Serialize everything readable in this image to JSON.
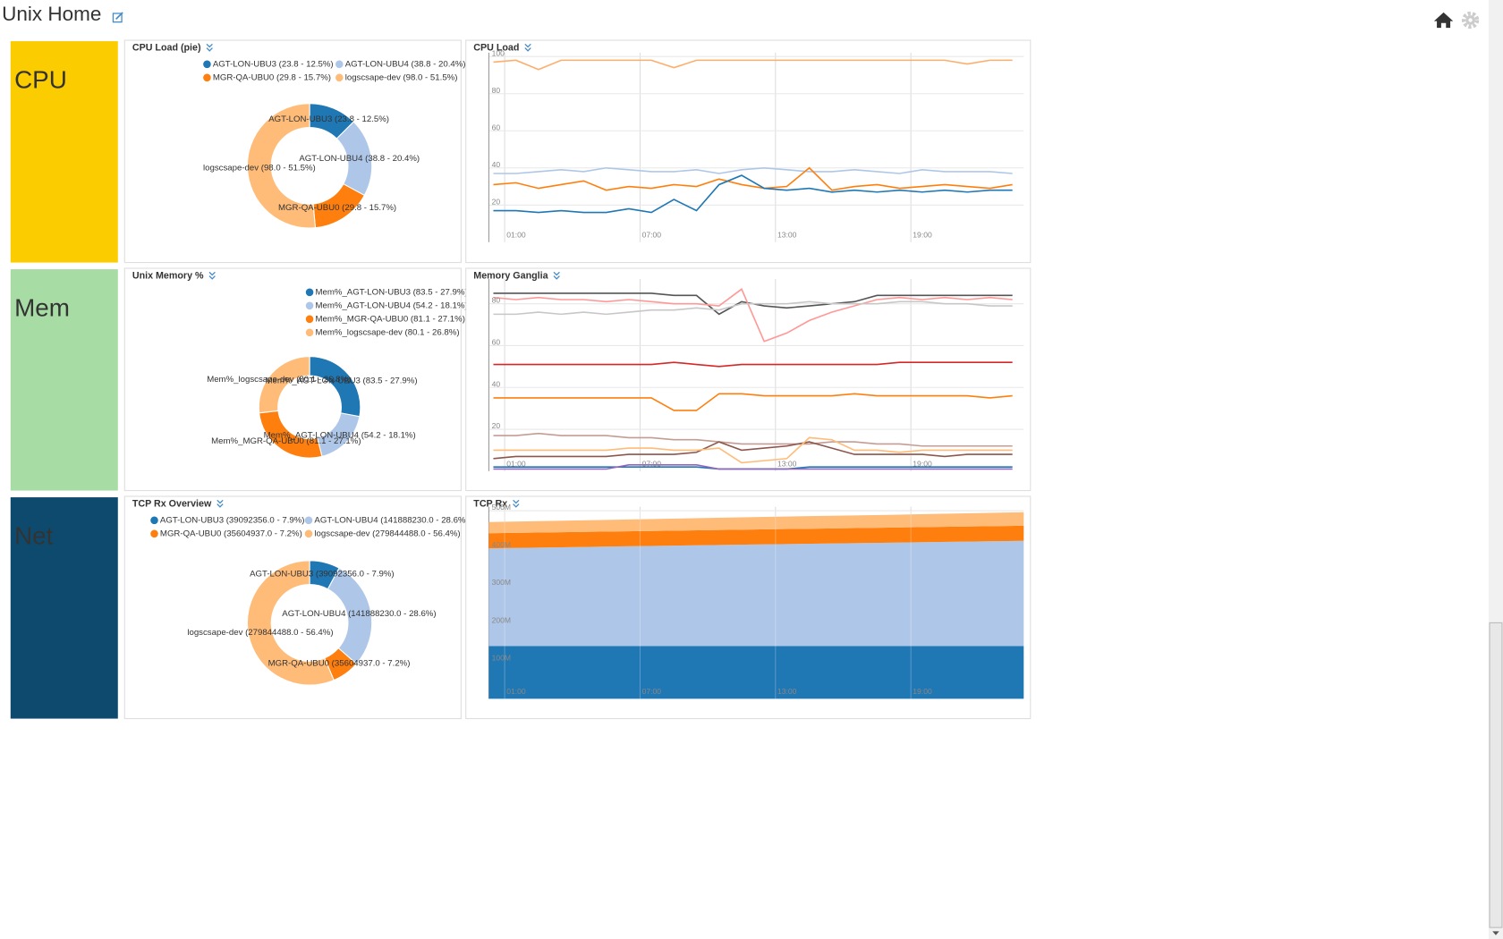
{
  "header": {
    "title": "Unix Home"
  },
  "tiles": [
    "CPU",
    "Mem",
    "Net"
  ],
  "chart_data": [
    {
      "type": "donut",
      "title": "CPU Load (pie)",
      "categories": [
        "AGT-LON-UBU3 (23.8 - 12.5%)",
        "AGT-LON-UBU4 (38.8 - 20.4%)",
        "MGR-QA-UBU0 (29.8 - 15.7%)",
        "logscsape-dev (98.0 - 51.5%)"
      ],
      "values": [
        23.8,
        38.8,
        29.8,
        98.0
      ],
      "colors": [
        "#1f77b4",
        "#aec7e8",
        "#ff7f0e",
        "#ffbb78"
      ]
    },
    {
      "type": "line",
      "title": "CPU Load",
      "grid": true,
      "x": [
        0.5,
        1.5,
        2.5,
        3.5,
        4.5,
        5.5,
        6.5,
        7.5,
        8.5,
        9.5,
        10.5,
        11.5,
        12.5,
        13.5,
        14.5,
        15.5,
        16.5,
        17.5,
        18.5,
        19.5,
        20.5,
        21.5,
        22.5,
        23.5
      ],
      "xlim": [
        0.3,
        24
      ],
      "xticks": [
        {
          "value": 1,
          "label": "01:00"
        },
        {
          "value": 7,
          "label": "07:00"
        },
        {
          "value": 13,
          "label": "13:00"
        },
        {
          "value": 19,
          "label": "19:00"
        }
      ],
      "ylim": [
        0,
        100
      ],
      "yticks": [
        20,
        40,
        60,
        80,
        100
      ],
      "series": [
        {
          "color": "#fdae6b",
          "values": [
            97,
            98,
            93,
            98,
            98,
            98,
            98,
            98,
            94,
            98,
            98,
            98,
            98,
            98,
            98,
            98,
            98,
            98,
            98,
            98,
            98,
            96,
            98,
            98
          ]
        },
        {
          "color": "#aec7e8",
          "values": [
            37,
            37,
            38,
            39,
            38,
            40,
            39,
            38,
            38,
            39,
            37,
            39,
            40,
            39,
            38,
            38,
            39,
            38,
            37,
            39,
            38,
            38,
            38,
            37
          ]
        },
        {
          "color": "#ff7f0e",
          "values": [
            31,
            32,
            29,
            31,
            33,
            28,
            30,
            29,
            31,
            30,
            34,
            31,
            29,
            30,
            40,
            28,
            30,
            31,
            29,
            30,
            31,
            30,
            29,
            31
          ]
        },
        {
          "color": "#1f77b4",
          "values": [
            17,
            17,
            16,
            17,
            16,
            16,
            18,
            16,
            23,
            17,
            31,
            36,
            29,
            28,
            29,
            27,
            28,
            27,
            28,
            27,
            28,
            27,
            28,
            28
          ]
        }
      ]
    },
    {
      "type": "donut",
      "title": "Unix Memory %",
      "categories": [
        "Mem%_AGT-LON-UBU3 (83.5 - 27.9%)",
        "Mem%_AGT-LON-UBU4 (54.2 - 18.1%)",
        "Mem%_MGR-QA-UBU0 (81.1 - 27.1%)",
        "Mem%_logscsape-dev (80.1 - 26.8%)"
      ],
      "values": [
        83.5,
        54.2,
        81.1,
        80.1
      ],
      "colors": [
        "#1f77b4",
        "#aec7e8",
        "#ff7f0e",
        "#ffbb78"
      ]
    },
    {
      "type": "line",
      "title": "Memory Ganglia",
      "grid": true,
      "x": [
        0.5,
        1.5,
        2.5,
        3.5,
        4.5,
        5.5,
        6.5,
        7.5,
        8.5,
        9.5,
        10.5,
        11.5,
        12.5,
        13.5,
        14.5,
        15.5,
        16.5,
        17.5,
        18.5,
        19.5,
        20.5,
        21.5,
        22.5,
        23.5
      ],
      "xlim": [
        0.3,
        24
      ],
      "xticks": [
        {
          "value": 1,
          "label": "01:00"
        },
        {
          "value": 7,
          "label": "07:00"
        },
        {
          "value": 13,
          "label": "13:00"
        },
        {
          "value": 19,
          "label": "19:00"
        }
      ],
      "ylim": [
        0,
        90
      ],
      "yticks": [
        20,
        40,
        60,
        80
      ],
      "series": [
        {
          "color": "#555555",
          "values": [
            85,
            85,
            85,
            85,
            85,
            85,
            85,
            85,
            84,
            84,
            75,
            81,
            79,
            78,
            79,
            80,
            81,
            84,
            84,
            84,
            84,
            84,
            84,
            84
          ]
        },
        {
          "color": "#ff9896",
          "values": [
            83,
            82,
            83,
            82,
            82,
            81,
            82,
            81,
            80,
            80,
            79,
            87,
            62,
            66,
            72,
            76,
            79,
            82,
            83,
            82,
            83,
            82,
            83,
            82
          ]
        },
        {
          "color": "#c7c7c7",
          "values": [
            75,
            75,
            76,
            75,
            76,
            75,
            76,
            77,
            77,
            78,
            77,
            80,
            80,
            80,
            81,
            80,
            80,
            80,
            81,
            81,
            80,
            80,
            79,
            79
          ]
        },
        {
          "color": "#d62728",
          "values": [
            51,
            51,
            51,
            51,
            51,
            51,
            51,
            51,
            52,
            51,
            50,
            51,
            51,
            51,
            51,
            51,
            51,
            51,
            52,
            52,
            52,
            52,
            52,
            52
          ]
        },
        {
          "color": "#ff7f0e",
          "values": [
            35,
            35,
            35,
            35,
            35,
            35,
            35,
            35,
            29,
            29,
            37,
            37,
            36,
            36,
            36,
            36,
            37,
            36,
            36,
            36,
            36,
            36,
            35,
            36
          ]
        },
        {
          "color": "#c49c94",
          "values": [
            17,
            17,
            18,
            17,
            17,
            17,
            16,
            16,
            15,
            15,
            14,
            13,
            13,
            13,
            13,
            14,
            14,
            13,
            13,
            12,
            12,
            12,
            12,
            12
          ]
        },
        {
          "color": "#8c564b",
          "values": [
            6,
            7,
            7,
            7,
            7,
            7,
            8,
            8,
            8,
            9,
            14,
            10,
            11,
            12,
            14,
            11,
            8,
            8,
            8,
            8,
            7,
            8,
            8,
            8
          ]
        },
        {
          "color": "#ffbb78",
          "values": [
            10,
            10,
            10,
            10,
            10,
            10,
            11,
            11,
            10,
            10,
            11,
            4,
            5,
            6,
            16,
            15,
            10,
            10,
            9,
            10,
            10,
            10,
            10,
            10
          ]
        },
        {
          "color": "#1f77b4",
          "values": [
            2,
            2,
            2,
            2,
            2,
            2,
            2,
            2,
            2,
            2,
            1,
            1,
            1,
            1,
            2,
            2,
            2,
            2,
            2,
            2,
            2,
            2,
            2,
            2
          ]
        },
        {
          "color": "#9467bd",
          "values": [
            1,
            1,
            1,
            1,
            1,
            1,
            3,
            3,
            3,
            3,
            1,
            1,
            1,
            1,
            1,
            1,
            1,
            1,
            1,
            1,
            1,
            1,
            1,
            1
          ]
        }
      ]
    },
    {
      "type": "donut",
      "title": "TCP Rx Overview",
      "categories": [
        "AGT-LON-UBU3 (39092356.0 - 7.9%)",
        "AGT-LON-UBU4 (141888230.0 - 28.6%)",
        "MGR-QA-UBU0 (35604937.0 - 7.2%)",
        "logscsape-dev (279844488.0 - 56.4%)"
      ],
      "values": [
        39092356.0,
        141888230.0,
        35604937.0,
        279844488.0
      ],
      "colors": [
        "#1f77b4",
        "#aec7e8",
        "#ff7f0e",
        "#ffbb78"
      ]
    },
    {
      "type": "area",
      "title": "TCP Rx",
      "grid": true,
      "stacked": true,
      "x": [
        0.3,
        6,
        12,
        18,
        24
      ],
      "xlim": [
        0.3,
        24
      ],
      "xticks": [
        {
          "value": 1,
          "label": "01:00"
        },
        {
          "value": 7,
          "label": "07:00"
        },
        {
          "value": 13,
          "label": "13:00"
        },
        {
          "value": 19,
          "label": "19:00"
        }
      ],
      "ylim": [
        0,
        500000000
      ],
      "yticks": [
        {
          "value": 100000000,
          "label": "100M"
        },
        {
          "value": 200000000,
          "label": "200M"
        },
        {
          "value": 300000000,
          "label": "300M"
        },
        {
          "value": 400000000,
          "label": "400M"
        },
        {
          "value": 500000000,
          "label": "500M"
        }
      ],
      "series": [
        {
          "color": "#1f77b4",
          "values": [
            140000000,
            140000000,
            140000000,
            140000000,
            140000000
          ]
        },
        {
          "color": "#aec7e8",
          "values": [
            260000000,
            265000000,
            270000000,
            275000000,
            280000000
          ]
        },
        {
          "color": "#ff7f0e",
          "values": [
            40000000,
            40000000,
            40000000,
            40000000,
            40000000
          ]
        },
        {
          "color": "#ffbb78",
          "values": [
            30000000,
            31000000,
            33000000,
            34000000,
            36000000
          ]
        }
      ]
    }
  ]
}
